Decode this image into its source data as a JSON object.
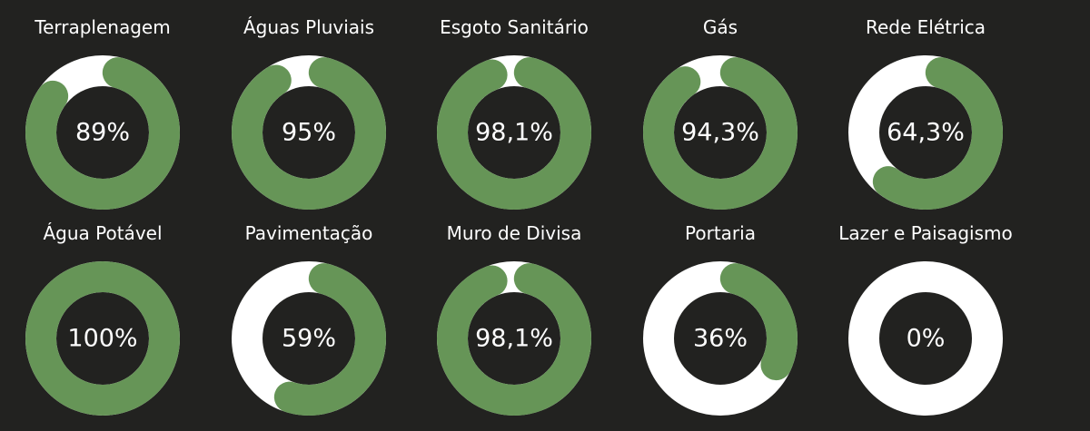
{
  "colors": {
    "background": "#222220",
    "progress": "#669557",
    "track": "#ffffff",
    "text": "#ffffff"
  },
  "chart_data": {
    "type": "donut",
    "items": [
      {
        "title": "Terraplenagem",
        "value": 89,
        "label": "89%"
      },
      {
        "title": "Águas Pluviais",
        "value": 95,
        "label": "95%"
      },
      {
        "title": "Esgoto Sanitário",
        "value": 98.1,
        "label": "98,1%"
      },
      {
        "title": "Gás",
        "value": 94.3,
        "label": "94,3%"
      },
      {
        "title": "Rede Elétrica",
        "value": 64.3,
        "label": "64,3%"
      },
      {
        "title": "Água Potável",
        "value": 100,
        "label": "100%"
      },
      {
        "title": "Pavimentação",
        "value": 59,
        "label": "59%"
      },
      {
        "title": "Muro de Divisa",
        "value": 98.1,
        "label": "98,1%"
      },
      {
        "title": "Portaria",
        "value": 36,
        "label": "36%"
      },
      {
        "title": "Lazer e Paisagismo",
        "value": 0,
        "label": "0%"
      }
    ]
  }
}
